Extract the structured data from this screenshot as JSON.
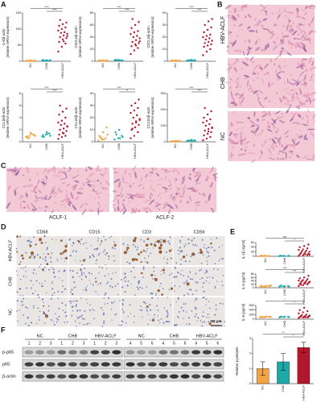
{
  "panel_labels": [
    "A",
    "B",
    "C",
    "D",
    "E",
    "F"
  ],
  "histology_B": {
    "labels": [
      "HBV-ACLF",
      "CHB",
      "NC"
    ]
  },
  "histology_C": {
    "labels": [
      "ACLF-1",
      "ACLF-2"
    ]
  },
  "ihc_D": {
    "columns": [
      "CD68",
      "CD15",
      "CD3",
      "CD56"
    ],
    "rows": [
      "HBV-ACLF",
      "CHB",
      "NC"
    ],
    "scale_bar": "50 μm"
  },
  "western_F": {
    "groups": [
      "NC",
      "CHB",
      "HBV-ACLF",
      "NC",
      "CHB",
      "HBV-ACLF"
    ],
    "lanes": [
      [
        "1",
        "2",
        "3"
      ],
      [
        "1",
        "2",
        "3"
      ],
      [
        "1",
        "2",
        "3"
      ],
      [
        "4",
        "5",
        "6"
      ],
      [
        "4",
        "5",
        "6"
      ],
      [
        "4",
        "5",
        "6"
      ]
    ],
    "rows": [
      "p-p65",
      "p65",
      "β-actin"
    ]
  },
  "chart_data": [
    {
      "type": "strip",
      "y_label": [
        "IL-8/β-actin",
        "(relative mRNA expression)"
      ],
      "categories": [
        "NC",
        "CHB",
        "HBV-ACLF"
      ],
      "colors": [
        "#f4a340",
        "#1fa8a8",
        "#b2182b"
      ],
      "values": [
        [
          1,
          2,
          0.5,
          1.5,
          3,
          2,
          1,
          0.8,
          2.5,
          1.2
        ],
        [
          2,
          3,
          1.5,
          4,
          2.5,
          3.5,
          1,
          2
        ],
        [
          30,
          45,
          55,
          60,
          68,
          72,
          75,
          80,
          85,
          88,
          90,
          95,
          100,
          105,
          110,
          115,
          120,
          128,
          62,
          78
        ]
      ],
      "ylim": [
        0,
        150
      ],
      "yticks": [
        0,
        50,
        100,
        150
      ],
      "brackets": [
        {
          "label": "****",
          "pair": [
            1,
            2
          ]
        },
        {
          "label": "****",
          "pair": [
            0,
            2
          ]
        }
      ]
    },
    {
      "type": "strip",
      "y_label": [
        "CXCL6/β-actin",
        "(relative mRNA expression)"
      ],
      "categories": [
        "NC",
        "CHB",
        "HBV-ACLF"
      ],
      "colors": [
        "#f4a340",
        "#1fa8a8",
        "#b2182b"
      ],
      "values": [
        [
          0.5,
          1,
          0.8,
          1.5,
          1.2,
          0.6,
          1,
          0.9,
          1.3,
          0.7
        ],
        [
          1,
          2,
          1.5,
          2.5,
          1.8,
          1.2,
          2,
          1.6
        ],
        [
          12,
          18,
          22,
          25,
          28,
          30,
          32,
          35,
          38,
          40,
          42,
          45,
          48,
          50,
          55,
          60,
          65,
          70,
          26,
          33
        ]
      ],
      "ylim": [
        0,
        80
      ],
      "yticks": [
        0,
        20,
        40,
        60,
        80
      ],
      "brackets": [
        {
          "label": "****",
          "pair": [
            1,
            2
          ]
        },
        {
          "label": "****",
          "pair": [
            0,
            2
          ]
        }
      ]
    },
    {
      "type": "strip",
      "y_label": [
        "CXCL5/β-actin",
        "(relative mRNA expression)"
      ],
      "categories": [
        "NC",
        "CHB",
        "HBV-ACLF"
      ],
      "colors": [
        "#f4a340",
        "#1fa8a8",
        "#b2182b"
      ],
      "values": [
        [
          0.3,
          0.5,
          0.4,
          0.8,
          0.6,
          0.2,
          0.5,
          0.7,
          0.4,
          0.3
        ],
        [
          0.5,
          0.8,
          1,
          0.6,
          1.2,
          0.7,
          0.9,
          0.4
        ],
        [
          5,
          8,
          10,
          12,
          13,
          14,
          15,
          16,
          17,
          18,
          19,
          20,
          21,
          22,
          24,
          26,
          28,
          30,
          33,
          35
        ]
      ],
      "ylim": [
        0,
        40
      ],
      "yticks": [
        0,
        10,
        20,
        30,
        40
      ],
      "brackets": [
        {
          "label": "****",
          "pair": [
            1,
            2
          ]
        },
        {
          "label": "****",
          "pair": [
            0,
            2
          ]
        }
      ]
    },
    {
      "type": "strip",
      "y_label": [
        "CCL18/β-actin",
        "(relative mRNA expression)"
      ],
      "categories": [
        "NC",
        "CHB",
        "HBV-ACLF"
      ],
      "colors": [
        "#f4a340",
        "#1fa8a8",
        "#b2182b"
      ],
      "values": [
        [
          0.8,
          1,
          1.2,
          0.9,
          1.5,
          1.1,
          0.7,
          1.3,
          1,
          0.6
        ],
        [
          0.9,
          1.2,
          1.4,
          1.1,
          1.6,
          1,
          0.8,
          1.3
        ],
        [
          0.5,
          0.8,
          1,
          1.2,
          1.5,
          1.8,
          2,
          2.2,
          2.5,
          2.8,
          3,
          3.2,
          3.5,
          4,
          4.5,
          5,
          5.5,
          6,
          1.4,
          2.6
        ]
      ],
      "ylim": [
        0,
        8
      ],
      "yticks": [
        0,
        2,
        4,
        6,
        8
      ],
      "brackets": [
        {
          "label": "****",
          "pair": [
            1,
            2
          ]
        },
        {
          "label": "****",
          "pair": [
            0,
            2
          ]
        }
      ]
    },
    {
      "type": "strip",
      "y_label": [
        "CCL19/β-actin",
        "(relative mRNA expression)"
      ],
      "categories": [
        "NC",
        "CHB",
        "HBV-ACLF"
      ],
      "colors": [
        "#f4a340",
        "#1fa8a8",
        "#b2182b"
      ],
      "values": [
        [
          1,
          2,
          3,
          5,
          8,
          12,
          4,
          2,
          6,
          3
        ],
        [
          2,
          3,
          5,
          8,
          10,
          4,
          6,
          3
        ],
        [
          3,
          5,
          8,
          10,
          12,
          14,
          15,
          16,
          18,
          20,
          22,
          24,
          26,
          28,
          30,
          32,
          35,
          11,
          17,
          19
        ]
      ],
      "ylim": [
        0,
        40
      ],
      "yticks": [
        0,
        10,
        20,
        30,
        40
      ],
      "brackets": [
        {
          "label": "**",
          "pair": [
            1,
            2
          ]
        },
        {
          "label": "****",
          "pair": [
            0,
            2
          ]
        }
      ]
    },
    {
      "type": "strip",
      "y_label": [
        "CCL20/β-actin",
        "(relative mRNA expression)"
      ],
      "categories": [
        "NC",
        "CHB",
        "HBV-ACLF"
      ],
      "colors": [
        "#f4a340",
        "#1fa8a8",
        "#b2182b"
      ],
      "values": [
        [
          2,
          3,
          5,
          4,
          6,
          3,
          2,
          5,
          4,
          3
        ],
        [
          5,
          8,
          10,
          6,
          12,
          7,
          9,
          4
        ],
        [
          10,
          20,
          30,
          40,
          50,
          60,
          70,
          80,
          90,
          100,
          110,
          120,
          130,
          140,
          150,
          170,
          190,
          210,
          65,
          85
        ]
      ],
      "ylim": [
        0,
        300
      ],
      "yticks": [
        0,
        100,
        200,
        300
      ],
      "brackets": [
        {
          "label": "****",
          "pair": [
            1,
            2
          ]
        },
        {
          "label": "****",
          "pair": [
            0,
            2
          ]
        }
      ]
    },
    {
      "type": "strip",
      "y_label": [
        "IL-1β (ng/ml)"
      ],
      "categories": [
        "NC",
        "CHB",
        "HBV-ACLF"
      ],
      "colors": [
        "#f4a340",
        "#1fa8a8",
        "#b2182b"
      ],
      "values": [
        [
          1,
          2,
          1.5,
          3,
          2,
          1,
          2.5,
          1.8
        ],
        [
          1,
          2,
          1.5,
          2.5,
          1.2,
          2,
          1.8
        ],
        [
          2,
          4,
          6,
          8,
          10,
          12,
          15,
          18,
          20,
          22,
          25,
          28,
          30,
          35,
          40,
          45,
          52,
          14,
          9,
          7
        ]
      ],
      "ylim": [
        0,
        60
      ],
      "yticks": [
        0,
        20,
        40,
        60
      ],
      "brackets": [
        {
          "label": "*",
          "pair": [
            1,
            2
          ]
        },
        {
          "label": "ns",
          "pair": [
            0,
            2
          ]
        }
      ]
    },
    {
      "type": "strip",
      "y_label": [
        "IL-6 (pg/ml)"
      ],
      "categories": [
        "NC",
        "CHB",
        "HBV-ACLF"
      ],
      "colors": [
        "#f4a340",
        "#1fa8a8",
        "#b2182b"
      ],
      "values": [
        [
          5,
          8,
          10,
          12,
          6,
          9,
          7,
          11,
          14,
          4
        ],
        [
          6,
          8,
          10,
          12,
          9,
          7,
          11
        ],
        [
          10,
          15,
          20,
          22,
          25,
          28,
          30,
          32,
          35,
          38,
          40,
          42,
          45,
          50,
          55,
          60,
          70,
          18,
          26,
          33
        ]
      ],
      "ylim": [
        0,
        80
      ],
      "yticks": [
        0,
        20,
        40,
        60,
        80
      ],
      "brackets": [
        {
          "label": "***",
          "pair": [
            1,
            2
          ]
        },
        {
          "label": "****",
          "pair": [
            0,
            2
          ]
        }
      ]
    },
    {
      "type": "strip",
      "y_label": [
        "IL-8 (pg/ml)"
      ],
      "categories": [
        "NC",
        "CHB",
        "HBV-ACLF"
      ],
      "colors": [
        "#f4a340",
        "#1fa8a8",
        "#b2182b"
      ],
      "values": [
        [
          80,
          90,
          100,
          110,
          95,
          105,
          85,
          120,
          100,
          90
        ],
        [
          80,
          95,
          100,
          110,
          105,
          90,
          100
        ],
        [
          50,
          70,
          80,
          90,
          100,
          110,
          120,
          140,
          160,
          180,
          200,
          250,
          300,
          350,
          400,
          500,
          95,
          130,
          85,
          150
        ]
      ],
      "ylim": [
        0,
        600
      ],
      "yticks": [
        0,
        200,
        400,
        600
      ],
      "brackets": [
        {
          "label": "*",
          "pair": [
            1,
            2
          ]
        },
        {
          "label": "*",
          "pair": [
            0,
            2
          ]
        }
      ]
    },
    {
      "type": "bar",
      "y_label": [
        "Relative p-p65/p65"
      ],
      "categories": [
        "NC",
        "CHB",
        "HBV-ACLF"
      ],
      "colors": [
        "#f4a340",
        "#1fa8a8",
        "#b2182b"
      ],
      "values": [
        1.0,
        1.45,
        2.4
      ],
      "errors": [
        0.45,
        0.55,
        0.35
      ],
      "ylim": [
        0,
        3
      ],
      "yticks": [
        0,
        1,
        2,
        3
      ],
      "brackets": [
        {
          "label": "*",
          "pair": [
            1,
            2
          ]
        },
        {
          "label": "**",
          "pair": [
            0,
            2
          ]
        }
      ]
    }
  ]
}
